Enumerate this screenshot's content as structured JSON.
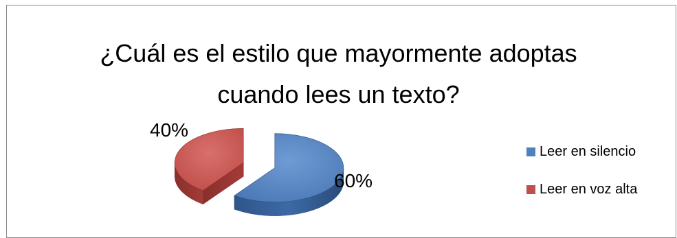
{
  "chart_data": {
    "type": "pie",
    "title": "¿Cuál es el estilo que mayormente adoptas cuando lees un texto?",
    "title_lines": [
      "¿Cuál es el estilo que mayormente adoptas",
      "cuando lees un texto?"
    ],
    "series": [
      {
        "name": "",
        "labels": [
          "Leer en silencio",
          "Leer en voz alta"
        ],
        "values": [
          60,
          40
        ],
        "value_labels": [
          "60%",
          "40%"
        ],
        "colors": [
          "#4f81bd",
          "#c0504d"
        ]
      }
    ],
    "legend_position": "right",
    "style": "3d-exploded"
  }
}
